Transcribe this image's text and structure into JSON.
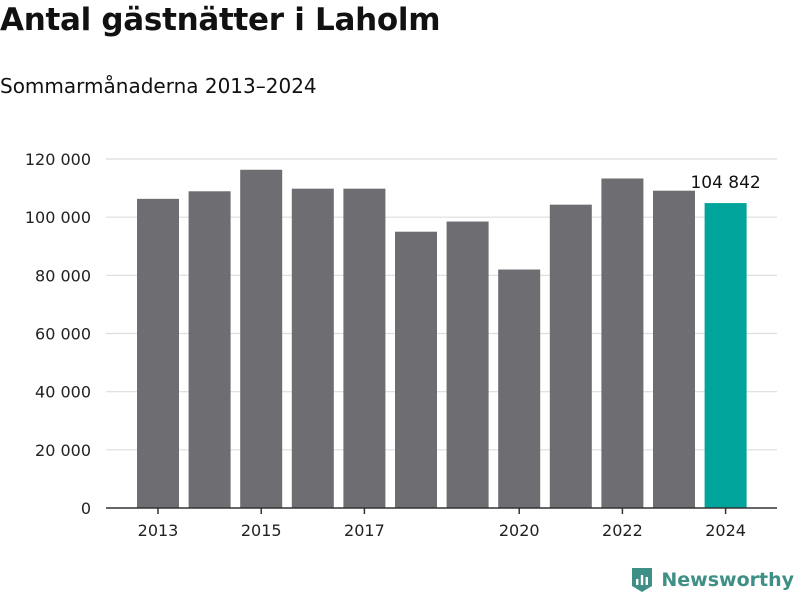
{
  "header": {
    "title": "Antal gästnätter i Laholm",
    "subtitle": "Sommarmånaderna 2013–2024"
  },
  "brand": {
    "name": "Newsworthy",
    "icon": "newsworthy-logo-icon",
    "color": "#3e8f85"
  },
  "chart_data": {
    "type": "bar",
    "title": "Antal gästnätter i Laholm",
    "subtitle": "Sommarmånaderna 2013–2024",
    "xlabel": "",
    "ylabel": "",
    "categories": [
      "2013",
      "2014",
      "2015",
      "2016",
      "2017",
      "2018",
      "2019",
      "2020",
      "2021",
      "2022",
      "2023",
      "2024"
    ],
    "values": [
      106300,
      108900,
      116300,
      109800,
      109800,
      95000,
      98500,
      82000,
      104300,
      113300,
      109100,
      104842
    ],
    "x_tick_labels": [
      "2013",
      "2015",
      "2017",
      "2020",
      "2022",
      "2024"
    ],
    "y_ticks": [
      0,
      20000,
      40000,
      60000,
      80000,
      100000,
      120000
    ],
    "y_tick_labels": [
      "0",
      "20 000",
      "40 000",
      "60 000",
      "80 000",
      "100 000",
      "120 000"
    ],
    "ylim": [
      0,
      120000
    ],
    "grid": true,
    "highlight_index": 11,
    "highlight_label": "104 842",
    "colors": {
      "bar": "#6e6d72",
      "highlight": "#00a49a",
      "grid": "#dddddd",
      "axis": "#333333"
    }
  }
}
